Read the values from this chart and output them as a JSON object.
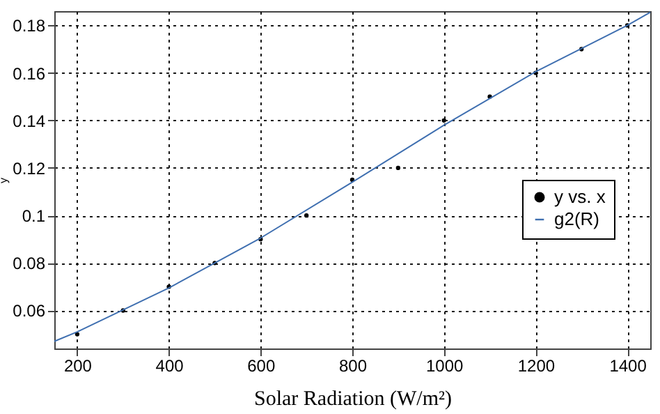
{
  "chart_data": {
    "type": "scatter",
    "xlabel": "Solar Radiation (W/m²)",
    "ylabel": "y",
    "xlim": [
      150,
      1450
    ],
    "ylim": [
      0.044,
      0.186
    ],
    "xticks": [
      200,
      400,
      600,
      800,
      1000,
      1200,
      1400
    ],
    "yticks": [
      0.06,
      0.08,
      0.1,
      0.12,
      0.14,
      0.16,
      0.18
    ],
    "grid": true,
    "legend": "right",
    "series": [
      {
        "name": "y vs. x",
        "marker": "circle",
        "color": "#000000",
        "x": [
          200,
          300,
          400,
          500,
          600,
          700,
          800,
          900,
          1000,
          1100,
          1200,
          1300,
          1400
        ],
        "values": [
          0.05,
          0.06,
          0.07,
          0.08,
          0.09,
          0.1,
          0.115,
          0.12,
          0.14,
          0.15,
          0.16,
          0.17,
          0.18
        ]
      },
      {
        "name": "g2(R)",
        "type": "line",
        "line_style": "solid",
        "color": "#3f6fb0",
        "x": [
          150,
          200,
          400,
          600,
          800,
          1000,
          1200,
          1400,
          1450
        ],
        "values": [
          0.047,
          0.051,
          0.0695,
          0.0905,
          0.114,
          0.138,
          0.1605,
          0.18,
          0.1855
        ]
      }
    ]
  }
}
